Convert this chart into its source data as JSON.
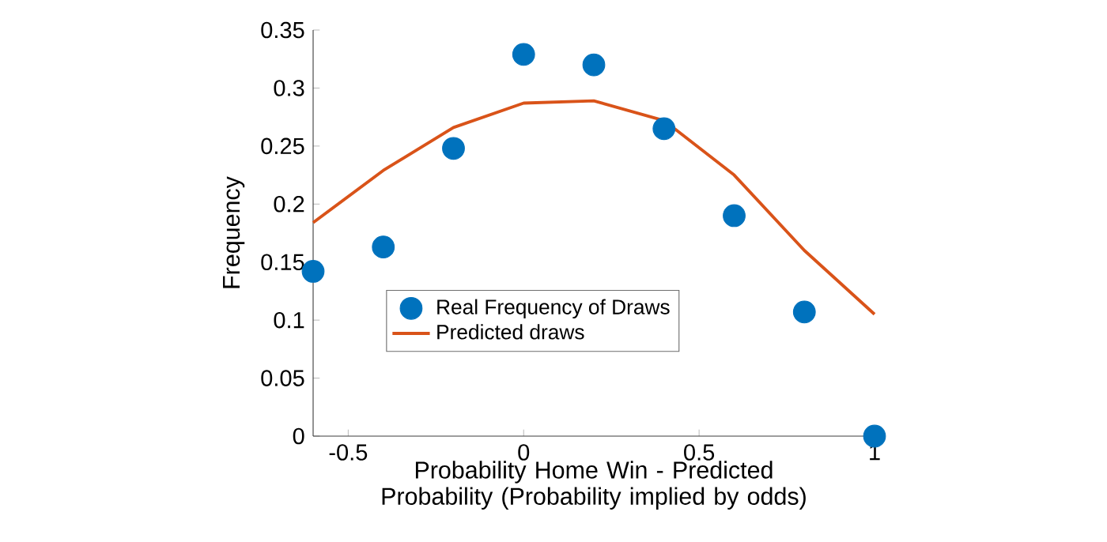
{
  "chart_data": {
    "type": "scatter",
    "xlabel": "Probability Home Win - Predicted Probability (Probability implied by odds)",
    "ylabel": "Frequency",
    "x": [
      -0.6,
      -0.4,
      -0.2,
      0,
      0.2,
      0.4,
      0.6,
      0.8,
      1
    ],
    "series": [
      {
        "name": "Real Frequency of Draws",
        "marker": "circle",
        "color": "#0072bd",
        "values": [
          0.142,
          0.163,
          0.248,
          0.329,
          0.32,
          0.265,
          0.19,
          0.107,
          0
        ]
      },
      {
        "name": "Predicted draws",
        "type": "line",
        "marker": "none",
        "line_style": "solid",
        "color": "#d95319",
        "values": [
          0.184,
          0.229,
          0.266,
          0.287,
          0.289,
          0.272,
          0.225,
          0.16,
          0.105
        ]
      }
    ],
    "xlim": [
      -0.6,
      1
    ],
    "xticks": [
      -0.5,
      0,
      0.5,
      1
    ],
    "ylim": [
      0,
      0.35
    ],
    "yticks": [
      0,
      0.05,
      0.1,
      0.15,
      0.2,
      0.25,
      0.3,
      0.35
    ],
    "grid": false,
    "legend": "center"
  }
}
